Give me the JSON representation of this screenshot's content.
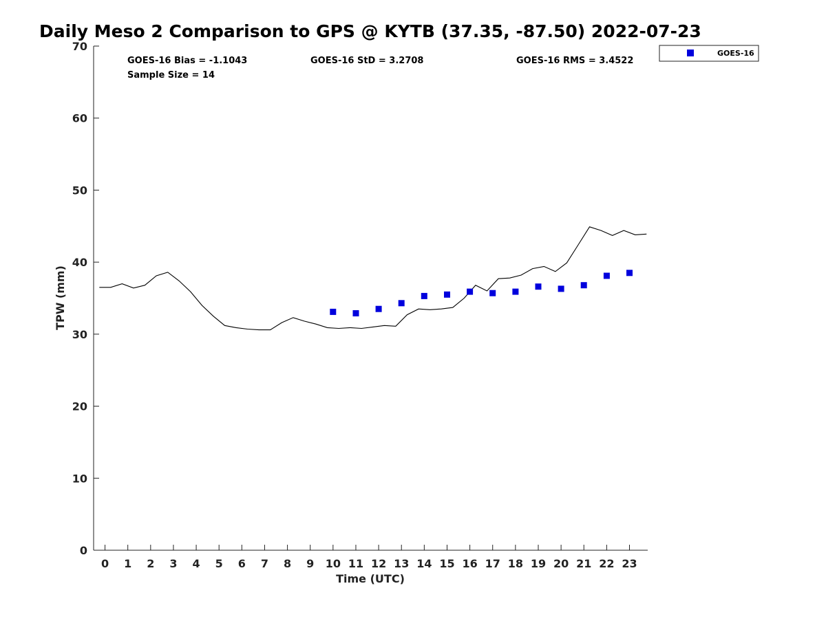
{
  "chart_data": {
    "type": "line",
    "title": "Daily Meso 2 Comparison to GPS @ KYTB (37.35, -87.50) 2022-07-23",
    "xlabel": "Time (UTC)",
    "ylabel": "TPW (mm)",
    "xlim": [
      -0.5,
      23.8
    ],
    "ylim": [
      0,
      70
    ],
    "xticks": [
      "0",
      "1",
      "2",
      "3",
      "4",
      "5",
      "6",
      "7",
      "8",
      "9",
      "10",
      "11",
      "12",
      "13",
      "14",
      "15",
      "16",
      "17",
      "18",
      "19",
      "20",
      "21",
      "22",
      "23"
    ],
    "yticks": [
      "0",
      "10",
      "20",
      "30",
      "40",
      "50",
      "60",
      "70"
    ],
    "grid": false,
    "legend_position": "top-right, outside plot",
    "stats": {
      "bias": "GOES-16 Bias = -1.1043",
      "std": "GOES-16 StD = 3.2708",
      "rms": "GOES-16 RMS = 3.4522",
      "sample": "Sample Size = 14"
    },
    "series": [
      {
        "style": "line",
        "color": "#000000",
        "x": [
          -0.25,
          0.25,
          0.75,
          1.25,
          1.75,
          2.25,
          2.75,
          3.25,
          3.75,
          4.25,
          4.75,
          5.25,
          5.75,
          6.25,
          6.75,
          7.25,
          7.75,
          8.25,
          8.75,
          9.25,
          9.75,
          10.25,
          10.75,
          11.25,
          11.75,
          12.25,
          12.75,
          13.25,
          13.75,
          14.25,
          14.75,
          15.25,
          15.75,
          16.25,
          16.75,
          17.25,
          17.75,
          18.25,
          18.75,
          19.25,
          19.75,
          20.25,
          20.75,
          21.25,
          21.75,
          22.25,
          22.75,
          23.25,
          23.75
        ],
        "y": [
          36.5,
          36.5,
          37.0,
          36.4,
          36.8,
          38.1,
          38.6,
          37.4,
          35.9,
          34.0,
          32.5,
          31.2,
          30.9,
          30.7,
          30.6,
          30.6,
          31.6,
          32.3,
          31.8,
          31.4,
          30.9,
          30.8,
          30.9,
          30.8,
          31.0,
          31.2,
          31.1,
          32.7,
          33.5,
          33.4,
          33.5,
          33.7,
          35.0,
          36.8,
          36.0,
          37.7,
          37.8,
          38.2,
          39.1,
          39.4,
          38.7,
          39.9,
          42.4,
          44.9,
          44.4,
          43.7,
          44.4,
          43.8,
          43.9
        ]
      },
      {
        "name": "GOES-16",
        "style": "markers",
        "marker": "square",
        "color": "#0000dd",
        "x": [
          10,
          11,
          12,
          13,
          14,
          15,
          16,
          17,
          18,
          19,
          20,
          21,
          22,
          23
        ],
        "y": [
          33.1,
          32.9,
          33.5,
          34.3,
          35.3,
          35.5,
          35.9,
          35.7,
          35.9,
          36.6,
          36.3,
          36.8,
          38.1,
          38.5
        ]
      }
    ]
  }
}
